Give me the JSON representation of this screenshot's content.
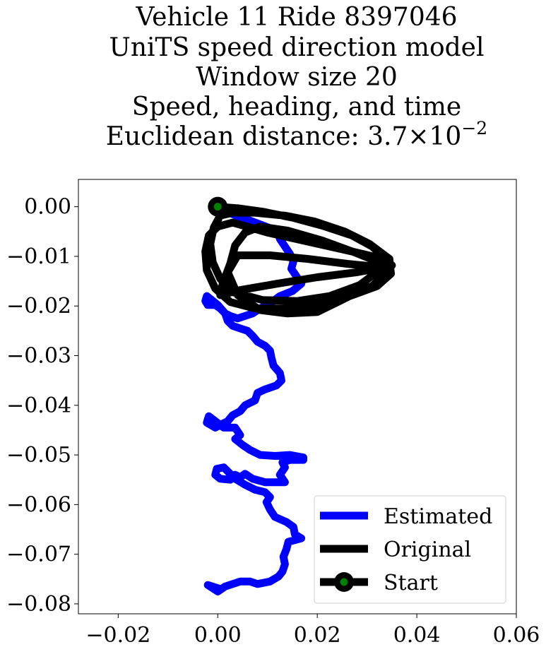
{
  "chart_data": {
    "type": "line",
    "title_lines": [
      "Vehicle 11 Ride 8397046",
      "UniTS speed direction model",
      "Window size 20",
      "Speed, heading, and time"
    ],
    "distance_label": "Euclidean distance: ",
    "distance_mantissa": "3.7",
    "distance_times": "×",
    "distance_base": "10",
    "distance_exponent": "−2",
    "xlabel": "",
    "ylabel": "",
    "xlim": [
      -0.028,
      0.06
    ],
    "ylim": [
      -0.082,
      0.0055
    ],
    "xticks": [
      {
        "value": -0.02,
        "label": "−0.02"
      },
      {
        "value": 0.0,
        "label": "0.00"
      },
      {
        "value": 0.02,
        "label": "0.02"
      },
      {
        "value": 0.04,
        "label": "0.04"
      },
      {
        "value": 0.06,
        "label": "0.06"
      }
    ],
    "yticks": [
      {
        "value": 0.0,
        "label": "0.00"
      },
      {
        "value": -0.01,
        "label": "−0.01"
      },
      {
        "value": -0.02,
        "label": "−0.02"
      },
      {
        "value": -0.03,
        "label": "−0.03"
      },
      {
        "value": -0.04,
        "label": "−0.04"
      },
      {
        "value": -0.05,
        "label": "−0.05"
      },
      {
        "value": -0.06,
        "label": "−0.06"
      },
      {
        "value": -0.07,
        "label": "−0.07"
      },
      {
        "value": -0.08,
        "label": "−0.08"
      }
    ],
    "grid": false,
    "legend_position": "lower-right",
    "series": [
      {
        "name": "Estimated",
        "color": "#0000ff",
        "points": [
          [
            0.0,
            0.0
          ],
          [
            0.003,
            -0.0015
          ],
          [
            0.007,
            -0.003
          ],
          [
            0.011,
            -0.0045
          ],
          [
            0.012,
            -0.005
          ],
          [
            0.0125,
            -0.0065
          ],
          [
            0.0135,
            -0.008
          ],
          [
            0.0145,
            -0.0095
          ],
          [
            0.0152,
            -0.011
          ],
          [
            0.0148,
            -0.0125
          ],
          [
            0.0158,
            -0.014
          ],
          [
            0.0168,
            -0.0155
          ],
          [
            0.015,
            -0.017
          ],
          [
            0.0125,
            -0.018
          ],
          [
            0.0105,
            -0.0195
          ],
          [
            0.0085,
            -0.0205
          ],
          [
            0.007,
            -0.0215
          ],
          [
            0.0055,
            -0.022
          ],
          [
            0.004,
            -0.0225
          ],
          [
            0.0025,
            -0.022
          ],
          [
            0.0015,
            -0.0215
          ],
          [
            0.0005,
            -0.0205
          ],
          [
            -0.0005,
            -0.0198
          ],
          [
            -0.002,
            -0.0198
          ],
          [
            -0.0025,
            -0.019
          ],
          [
            -0.0022,
            -0.018
          ],
          [
            -0.0012,
            -0.0188
          ],
          [
            0.0,
            -0.0198
          ],
          [
            0.0015,
            -0.0215
          ],
          [
            0.002,
            -0.023
          ],
          [
            0.003,
            -0.024
          ],
          [
            0.0045,
            -0.0245
          ],
          [
            0.006,
            -0.025
          ],
          [
            0.007,
            -0.026
          ],
          [
            0.008,
            -0.0272
          ],
          [
            0.0095,
            -0.028
          ],
          [
            0.0105,
            -0.029
          ],
          [
            0.0108,
            -0.0305
          ],
          [
            0.0112,
            -0.032
          ],
          [
            0.0125,
            -0.0335
          ],
          [
            0.0128,
            -0.035
          ],
          [
            0.0118,
            -0.036
          ],
          [
            0.0095,
            -0.0368
          ],
          [
            0.008,
            -0.0375
          ],
          [
            0.0075,
            -0.039
          ],
          [
            0.0055,
            -0.04
          ],
          [
            0.0045,
            -0.0412
          ],
          [
            0.003,
            -0.042
          ],
          [
            0.002,
            -0.0432
          ],
          [
            0.0008,
            -0.0438
          ],
          [
            -0.0005,
            -0.0445
          ],
          [
            -0.0022,
            -0.0435
          ],
          [
            -0.0018,
            -0.0422
          ],
          [
            -0.0005,
            -0.0432
          ],
          [
            0.0012,
            -0.0445
          ],
          [
            0.0035,
            -0.0445
          ],
          [
            0.0045,
            -0.046
          ],
          [
            0.0035,
            -0.0468
          ],
          [
            0.005,
            -0.048
          ],
          [
            0.0065,
            -0.049
          ],
          [
            0.0085,
            -0.05
          ],
          [
            0.0115,
            -0.0502
          ],
          [
            0.0145,
            -0.05
          ],
          [
            0.0172,
            -0.0505
          ],
          [
            0.0172,
            -0.051
          ],
          [
            0.0145,
            -0.051
          ],
          [
            0.013,
            -0.0515
          ],
          [
            0.0135,
            -0.0525
          ],
          [
            0.0125,
            -0.054
          ],
          [
            0.0135,
            -0.0555
          ],
          [
            0.0095,
            -0.0555
          ],
          [
            0.007,
            -0.0548
          ],
          [
            0.0055,
            -0.0538
          ],
          [
            0.0045,
            -0.0545
          ],
          [
            0.0035,
            -0.054
          ],
          [
            0.0025,
            -0.055
          ],
          [
            0.0005,
            -0.0548
          ],
          [
            -0.0005,
            -0.054
          ],
          [
            -0.0002,
            -0.0528
          ],
          [
            0.0012,
            -0.0525
          ],
          [
            0.0022,
            -0.0535
          ],
          [
            0.0035,
            -0.0548
          ],
          [
            0.0055,
            -0.056
          ],
          [
            0.0075,
            -0.057
          ],
          [
            0.0095,
            -0.0575
          ],
          [
            0.0105,
            -0.0585
          ],
          [
            0.0098,
            -0.0595
          ],
          [
            0.0105,
            -0.061
          ],
          [
            0.0115,
            -0.0625
          ],
          [
            0.0138,
            -0.0635
          ],
          [
            0.0152,
            -0.0645
          ],
          [
            0.0155,
            -0.066
          ],
          [
            0.0168,
            -0.0668
          ],
          [
            0.0142,
            -0.0675
          ],
          [
            0.0138,
            -0.069
          ],
          [
            0.0132,
            -0.0705
          ],
          [
            0.0135,
            -0.072
          ],
          [
            0.013,
            -0.0735
          ],
          [
            0.0122,
            -0.0745
          ],
          [
            0.0105,
            -0.0755
          ],
          [
            0.008,
            -0.076
          ],
          [
            0.0065,
            -0.0755
          ],
          [
            0.0045,
            -0.0755
          ],
          [
            0.003,
            -0.076
          ],
          [
            0.0015,
            -0.0765
          ],
          [
            0.0,
            -0.0775
          ],
          [
            -0.002,
            -0.0762
          ],
          [
            0.0005,
            -0.077
          ]
        ]
      },
      {
        "name": "Original",
        "color": "#000000",
        "points": [
          [
            0.0,
            0.0
          ],
          [
            0.004,
            -0.0003
          ],
          [
            0.009,
            -0.001
          ],
          [
            0.015,
            -0.0022
          ],
          [
            0.021,
            -0.0038
          ],
          [
            0.027,
            -0.0058
          ],
          [
            0.031,
            -0.008
          ],
          [
            0.0335,
            -0.0102
          ],
          [
            0.0325,
            -0.0128
          ],
          [
            0.0285,
            -0.0158
          ],
          [
            0.0225,
            -0.018
          ],
          [
            0.016,
            -0.019
          ],
          [
            0.009,
            -0.0188
          ],
          [
            0.003,
            -0.0172
          ],
          [
            0.0005,
            -0.0145
          ],
          [
            -0.001,
            -0.0112
          ],
          [
            -0.0015,
            -0.0075
          ],
          [
            -0.0008,
            -0.0042
          ],
          [
            0.0005,
            -0.0018
          ],
          [
            0.003,
            -0.0012
          ],
          [
            0.0075,
            -0.0012
          ],
          [
            0.0135,
            -0.0018
          ],
          [
            0.0195,
            -0.003
          ],
          [
            0.0255,
            -0.005
          ],
          [
            0.0305,
            -0.0075
          ],
          [
            0.0345,
            -0.0105
          ],
          [
            0.0348,
            -0.0135
          ],
          [
            0.032,
            -0.016
          ],
          [
            0.0265,
            -0.018
          ],
          [
            0.0205,
            -0.0198
          ],
          [
            0.014,
            -0.0205
          ],
          [
            0.0075,
            -0.0205
          ],
          [
            0.0025,
            -0.0192
          ],
          [
            -0.0005,
            -0.0165
          ],
          [
            -0.0022,
            -0.0128
          ],
          [
            -0.0025,
            -0.009
          ],
          [
            -0.0018,
            -0.0058
          ],
          [
            0.0,
            -0.004
          ],
          [
            0.003,
            -0.0032
          ],
          [
            0.01,
            -0.0052
          ],
          [
            0.018,
            -0.007
          ],
          [
            0.026,
            -0.0088
          ],
          [
            0.032,
            -0.0102
          ],
          [
            0.0345,
            -0.0112
          ],
          [
            0.0335,
            -0.0122
          ],
          [
            0.028,
            -0.0132
          ],
          [
            0.02,
            -0.0142
          ],
          [
            0.012,
            -0.0155
          ],
          [
            0.0045,
            -0.0168
          ],
          [
            0.0005,
            -0.0178
          ],
          [
            0.001,
            -0.0155
          ],
          [
            0.0025,
            -0.0115
          ],
          [
            0.0035,
            -0.0078
          ],
          [
            0.0055,
            -0.0052
          ],
          [
            0.0085,
            -0.004
          ],
          [
            0.014,
            -0.0048
          ],
          [
            0.021,
            -0.0068
          ],
          [
            0.0275,
            -0.0092
          ],
          [
            0.0325,
            -0.0112
          ],
          [
            0.035,
            -0.0118
          ],
          [
            0.033,
            -0.0122
          ],
          [
            0.026,
            -0.0115
          ],
          [
            0.018,
            -0.0105
          ],
          [
            0.0105,
            -0.0098
          ],
          [
            0.004,
            -0.0098
          ],
          [
            0.002,
            -0.0132
          ],
          [
            0.004,
            -0.0178
          ],
          [
            0.0085,
            -0.0208
          ],
          [
            0.014,
            -0.0215
          ],
          [
            0.02,
            -0.0212
          ],
          [
            0.0235,
            -0.0195
          ],
          [
            0.0275,
            -0.0175
          ],
          [
            0.031,
            -0.016
          ],
          [
            0.0335,
            -0.0138
          ],
          [
            0.0345,
            -0.0118
          ]
        ]
      }
    ],
    "start_marker": {
      "x": 0.0,
      "y": 0.0,
      "name": "Start",
      "edge_color": "#000000",
      "face_color": "#008000"
    },
    "legend_entries": [
      {
        "label": "Estimated",
        "color": "#0000ff",
        "kind": "line"
      },
      {
        "label": "Original",
        "color": "#000000",
        "kind": "line"
      },
      {
        "label": "Start",
        "color": "#000000",
        "kind": "marker",
        "face": "#008000"
      }
    ]
  }
}
